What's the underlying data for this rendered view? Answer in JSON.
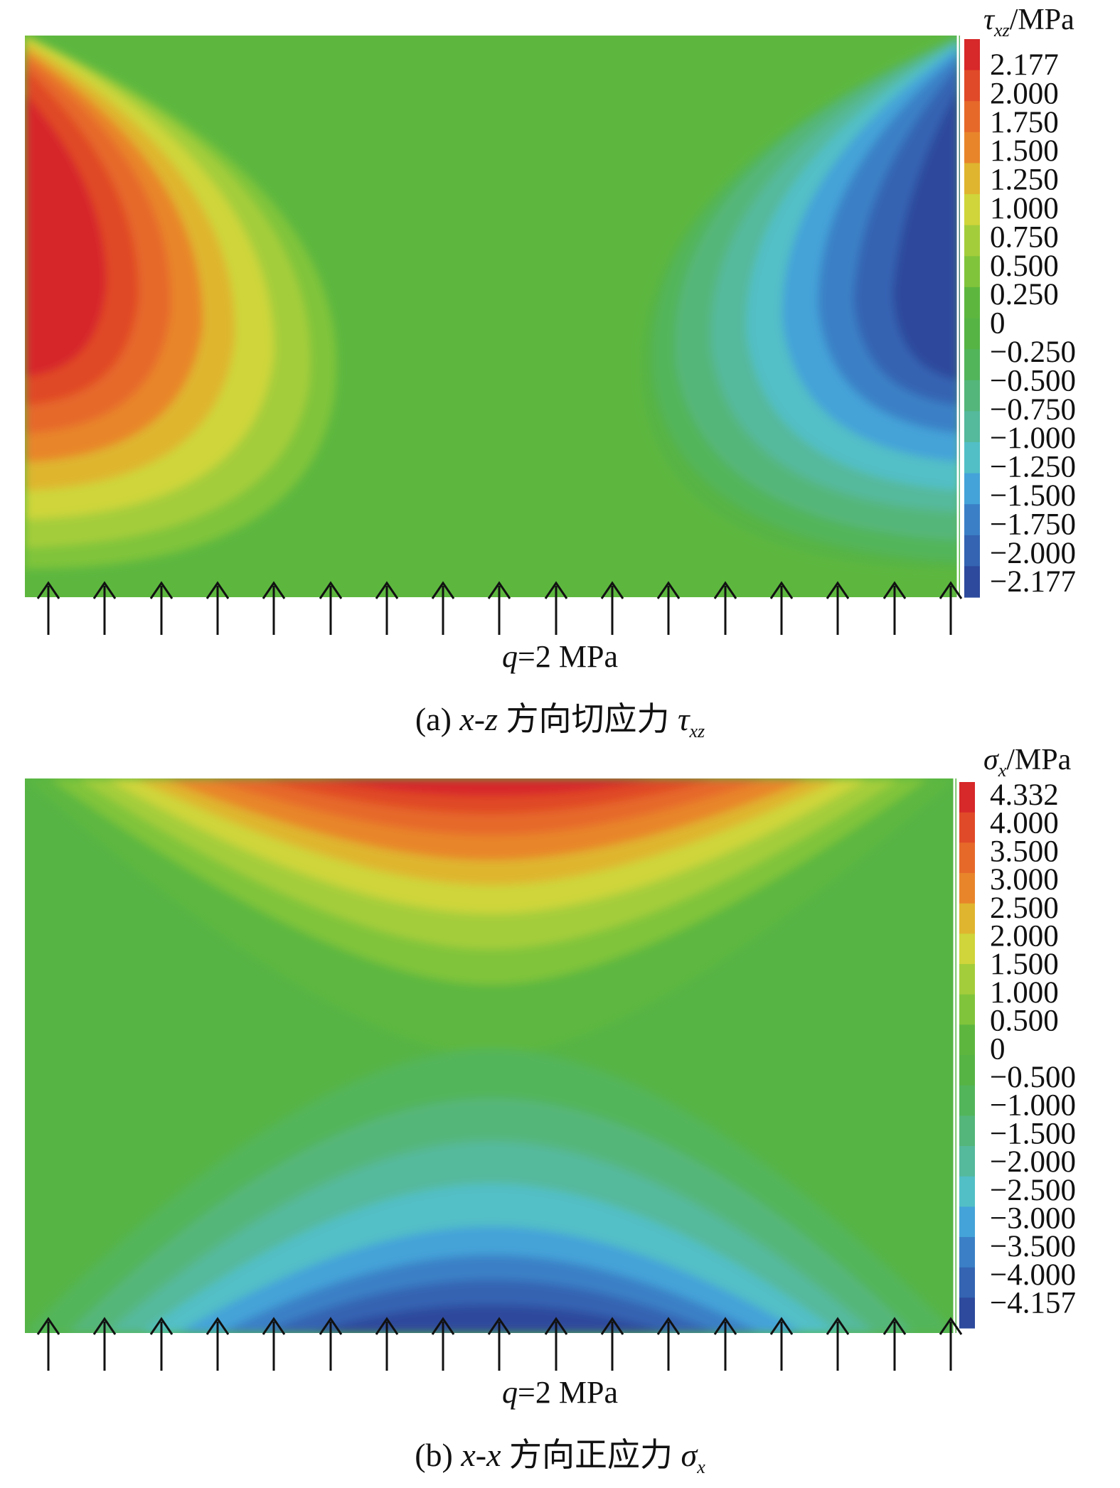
{
  "panel_a": {
    "colorbar_title_symbol": "τ",
    "colorbar_title_sub": "xz",
    "colorbar_title_unit": "/MPa",
    "ticks": [
      "2.177",
      "2.000",
      "1.750",
      "1.500",
      "1.250",
      "1.000",
      "0.750",
      "0.500",
      "0.250",
      "0",
      "−0.250",
      "−0.500",
      "−0.750",
      "−1.000",
      "−1.250",
      "−1.500",
      "−1.750",
      "−2.000",
      "−2.177"
    ],
    "colors": [
      "#d7282a",
      "#e04a28",
      "#e6692a",
      "#e8852b",
      "#dfb52f",
      "#cfd53a",
      "#a4cd3b",
      "#80c43b",
      "#5db73f",
      "#56b445",
      "#52b55a",
      "#54b67a",
      "#55b99c",
      "#52bfc6",
      "#44a3d8",
      "#3b80c6",
      "#3464b2",
      "#2d4a9c"
    ],
    "load_var": "q",
    "load_text": "=2 MPa",
    "caption_prefix": "(a) ",
    "caption_var": "x-z",
    "caption_text": " 方向切应力 ",
    "caption_sym": "τ",
    "caption_sub": "xz"
  },
  "panel_b": {
    "colorbar_title_symbol": "σ",
    "colorbar_title_sub": "x",
    "colorbar_title_unit": "/MPa",
    "ticks": [
      "4.332",
      "4.000",
      "3.500",
      "3.000",
      "2.500",
      "2.000",
      "1.500",
      "1.000",
      "0.500",
      "0",
      "−0.500",
      "−1.000",
      "−1.500",
      "−2.000",
      "−2.500",
      "−3.000",
      "−3.500",
      "−4.000",
      "−4.157"
    ],
    "colors": [
      "#d7282a",
      "#e04a28",
      "#e6692a",
      "#e8852b",
      "#dfb52f",
      "#cfd53a",
      "#a4cd3b",
      "#80c43b",
      "#5db73f",
      "#56b445",
      "#52b55a",
      "#54b67a",
      "#55b99c",
      "#52bfc6",
      "#44a3d8",
      "#3b80c6",
      "#3464b2",
      "#2d4a9c"
    ],
    "load_var": "q",
    "load_text": "=2 MPa",
    "caption_prefix": "(b) ",
    "caption_var": "x-x",
    "caption_text": " 方向正应力 ",
    "caption_sym": "σ",
    "caption_sub": "x"
  }
}
